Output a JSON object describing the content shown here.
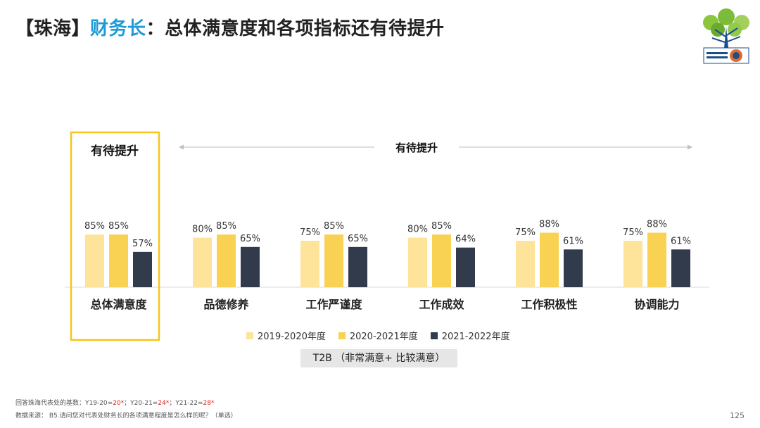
{
  "title": {
    "prefix": "【珠海】",
    "highlight": "财务长",
    "suffix": "：总体满意度和各项指标还有待提升"
  },
  "colors": {
    "s1": "#fde49a",
    "s2": "#f9d254",
    "s3": "#323b4c",
    "box": "#f7c51e",
    "title_highlight": "#1d9bd7"
  },
  "chart_data": {
    "type": "bar",
    "categories": [
      "总体满意度",
      "品德修养",
      "工作严谨度",
      "工作成效",
      "工作积极性",
      "协调能力"
    ],
    "series": [
      {
        "name": "2019-2020年度",
        "values": [
          85,
          80,
          75,
          80,
          75,
          75
        ]
      },
      {
        "name": "2020-2021年度",
        "values": [
          85,
          85,
          85,
          85,
          88,
          88
        ]
      },
      {
        "name": "2021-2022年度",
        "values": [
          57,
          65,
          65,
          64,
          61,
          61
        ]
      }
    ],
    "value_suffix": "%",
    "highlight_label": "有待提升",
    "span_label": "有待提升",
    "legend_position": "bottom",
    "grid": false
  },
  "t2b_label": "T2B （非常满意+ 比较满意）",
  "footnote": {
    "base_prefix": "回答珠海代表处的基数：Y19-20=",
    "y19": "20*",
    "mid1": "；Y20-21=",
    "y20": "24*",
    "mid2": "；Y21-22=",
    "y21": "28*",
    "source": "数据来源：  B5.请问您对代表处财务长的各项满意程度是怎么样的呢？（单选）"
  },
  "page_number": "125"
}
